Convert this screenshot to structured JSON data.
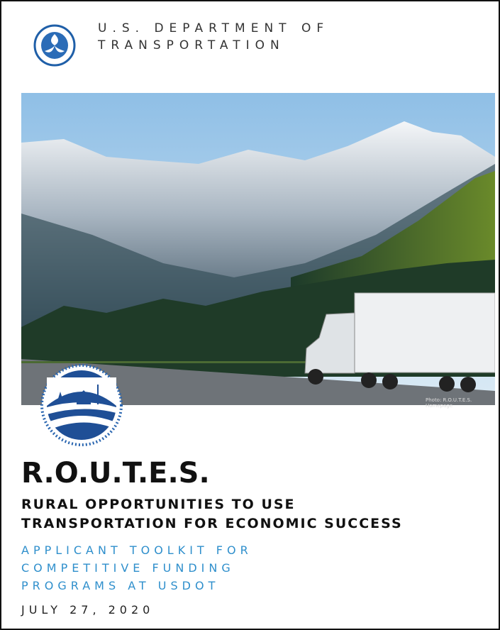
{
  "header": {
    "lines": [
      "U.S. DEPARTMENT OF",
      "TRANSPORTATION"
    ]
  },
  "photo": {
    "credit": "Photo: R.O.U.T.E.S. Homepage"
  },
  "title": "R.O.U.T.E.S.",
  "subtitle": {
    "lines": [
      "RURAL OPPORTUNITIES TO USE",
      "TRANSPORTATION FOR ECONOMIC SUCCESS"
    ]
  },
  "toolkit": {
    "lines": [
      "APPLICANT TOOLKIT FOR",
      "COMPETITIVE FUNDING",
      "PROGRAMS AT USDOT"
    ]
  },
  "date": "JULY 27, 2020"
}
